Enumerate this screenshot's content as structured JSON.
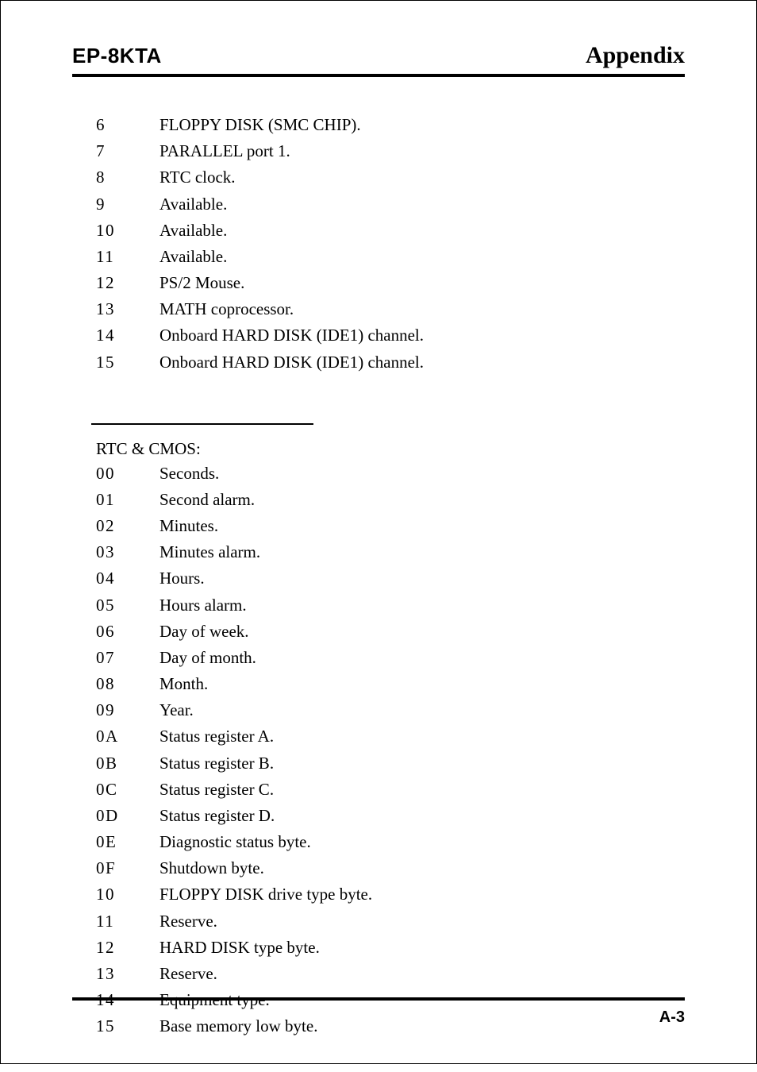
{
  "header": {
    "left": "EP-8KTA",
    "right": "Appendix"
  },
  "irq_list": [
    {
      "num": "6",
      "desc": "FLOPPY DISK (SMC CHIP)."
    },
    {
      "num": "7",
      "desc": "PARALLEL port 1."
    },
    {
      "num": "8",
      "desc": "RTC clock."
    },
    {
      "num": "9",
      "desc": "Available."
    },
    {
      "num": "10",
      "desc": "Available."
    },
    {
      "num": "11",
      "desc": "Available."
    },
    {
      "num": "12",
      "desc": "PS/2 Mouse."
    },
    {
      "num": "13",
      "desc": "MATH coprocessor."
    },
    {
      "num": "14",
      "desc": "Onboard HARD DISK (IDE1) channel."
    },
    {
      "num": "15",
      "desc": "Onboard HARD DISK (IDE1) channel."
    }
  ],
  "rtc_title": "RTC & CMOS:",
  "rtc_list": [
    {
      "num": "00",
      "desc": "Seconds."
    },
    {
      "num": "01",
      "desc": "Second alarm."
    },
    {
      "num": "02",
      "desc": "Minutes."
    },
    {
      "num": "03",
      "desc": "Minutes alarm."
    },
    {
      "num": "04",
      "desc": "Hours."
    },
    {
      "num": "05",
      "desc": "Hours alarm."
    },
    {
      "num": "06",
      "desc": "Day of week."
    },
    {
      "num": "07",
      "desc": "Day of month."
    },
    {
      "num": "08",
      "desc": "Month."
    },
    {
      "num": "09",
      "desc": "Year."
    },
    {
      "num": "0A",
      "desc": "Status register A."
    },
    {
      "num": "0B",
      "desc": "Status register B."
    },
    {
      "num": "0C",
      "desc": "Status register C."
    },
    {
      "num": "0D",
      "desc": "Status register D."
    },
    {
      "num": "0E",
      "desc": "Diagnostic status byte."
    },
    {
      "num": "0F",
      "desc": "Shutdown byte."
    },
    {
      "num": "10",
      "desc": "FLOPPY DISK drive type byte."
    },
    {
      "num": "11",
      "desc": "Reserve."
    },
    {
      "num": "12",
      "desc": "HARD DISK type byte."
    },
    {
      "num": "13",
      "desc": "Reserve."
    },
    {
      "num": "14",
      "desc": "Equipment type."
    },
    {
      "num": "15",
      "desc": "Base memory low byte."
    }
  ],
  "footer": "A-3",
  "colors": {
    "text": "#000000",
    "background": "#ffffff",
    "rule": "#000000"
  },
  "fonts": {
    "body_family": "Times New Roman",
    "header_family": "Arial",
    "body_size_pt": 16,
    "header_left_size_pt": 20,
    "header_right_size_pt": 22,
    "footer_size_pt": 15
  }
}
